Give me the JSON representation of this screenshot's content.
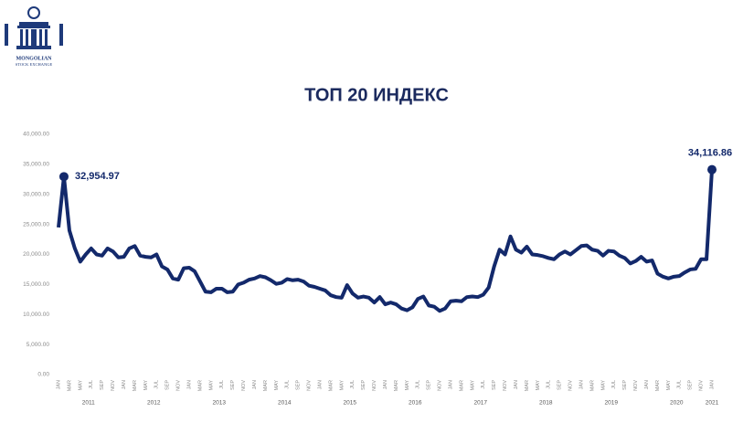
{
  "logo": {
    "line1": "MONGOLIAN",
    "line2": "STOCK EXCHANGE"
  },
  "chart_data": {
    "type": "line",
    "title": "ТОП 20 ИНДЕКС",
    "color": "#13296b",
    "grid": false,
    "categories": [
      "JAN",
      null,
      "MAR",
      null,
      "MAY",
      null,
      "JUL",
      null,
      "SEP",
      null,
      "NOV",
      null,
      "JAN",
      null,
      "MAR",
      null,
      "MAY",
      null,
      "JUL",
      null,
      "SEP",
      null,
      "NOV",
      null,
      "JAN",
      null,
      "MAR",
      null,
      "MAY",
      null,
      "JUL",
      null,
      "SEP",
      null,
      "NOV",
      null,
      "JAN",
      null,
      "MAR",
      null,
      "MAY",
      null,
      "JUL",
      null,
      "SEP",
      null,
      "NOV",
      null,
      "JAN",
      null,
      "MAR",
      null,
      "MAY",
      null,
      "JUL",
      null,
      "SEP",
      null,
      "NOV",
      null,
      "JAN",
      null,
      "MAR",
      null,
      "MAY",
      null,
      "JUL",
      null,
      "SEP",
      null,
      "NOV",
      null,
      "JAN",
      null,
      "MAR",
      null,
      "MAY",
      null,
      "JUL",
      null,
      "SEP",
      null,
      "NOV",
      null,
      "JAN",
      null,
      "MAR",
      null,
      "MAY",
      null,
      "JUL",
      null,
      "SEP",
      null,
      "NOV",
      null,
      "JAN",
      null,
      "MAR",
      null,
      "MAY",
      null,
      "JUL",
      null,
      "SEP",
      null,
      "NOV",
      null,
      "JAN",
      null,
      "MAR",
      null,
      "MAY",
      null,
      "JUL",
      null,
      "SEP",
      null,
      "NOV",
      null,
      "JAN"
    ],
    "years": [
      "2011",
      "2012",
      "2013",
      "2014",
      "2015",
      "2016",
      "2017",
      "2018",
      "2019",
      "2020",
      "2021"
    ],
    "values": [
      24500,
      32954.97,
      24000,
      21000,
      18800,
      20000,
      21000,
      20000,
      19800,
      21000,
      20500,
      19500,
      19600,
      21000,
      21400,
      19800,
      19600,
      19500,
      20000,
      18000,
      17500,
      16000,
      15800,
      17700,
      17800,
      17200,
      15500,
      13800,
      13700,
      14300,
      14300,
      13700,
      13800,
      15000,
      15300,
      15800,
      16000,
      16400,
      16200,
      15700,
      15100,
      15300,
      15900,
      15700,
      15800,
      15500,
      14800,
      14600,
      14300,
      14000,
      13200,
      12900,
      12800,
      14900,
      13500,
      12800,
      13000,
      12800,
      12000,
      12900,
      11700,
      12000,
      11700,
      11000,
      10700,
      11200,
      12600,
      13000,
      11500,
      11300,
      10600,
      11000,
      12200,
      12300,
      12200,
      12900,
      13000,
      12900,
      13300,
      14500,
      18000,
      20800,
      20000,
      23000,
      20800,
      20300,
      21300,
      20000,
      19900,
      19700,
      19400,
      19200,
      20000,
      20500,
      20000,
      20700,
      21400,
      21500,
      20800,
      20600,
      19800,
      20600,
      20500,
      19800,
      19400,
      18500,
      18900,
      19600,
      18800,
      19000,
      16800,
      16300,
      16000,
      16300,
      16400,
      17000,
      17500,
      17600,
      19200,
      19200,
      34116.86
    ],
    "value_labels": [
      null,
      "32,954.97",
      null,
      null,
      null,
      null,
      null,
      null,
      null,
      null,
      null,
      null,
      null,
      null,
      null,
      null,
      null,
      null,
      null,
      null,
      null,
      null,
      null,
      null,
      null,
      null,
      null,
      null,
      null,
      null,
      null,
      null,
      null,
      null,
      null,
      null,
      null,
      null,
      null,
      null,
      null,
      null,
      null,
      null,
      null,
      null,
      null,
      null,
      null,
      null,
      null,
      null,
      null,
      null,
      null,
      null,
      null,
      null,
      null,
      null,
      null,
      null,
      null,
      null,
      null,
      null,
      null,
      null,
      null,
      null,
      null,
      null,
      null,
      null,
      null,
      null,
      null,
      null,
      null,
      null,
      null,
      null,
      null,
      null,
      null,
      null,
      null,
      null,
      null,
      null,
      null,
      null,
      null,
      null,
      null,
      null,
      null,
      null,
      null,
      null,
      null,
      null,
      null,
      null,
      null,
      null,
      null,
      null,
      null,
      null,
      null,
      null,
      null,
      null,
      null,
      null,
      null,
      null,
      null,
      null,
      "34,116.86"
    ],
    "ylim": [
      0,
      40000
    ],
    "yticks": [
      {
        "value": 0,
        "label": "0.00"
      },
      {
        "value": 5000,
        "label": "5,000.00"
      },
      {
        "value": 10000,
        "label": "10,000.00"
      },
      {
        "value": 15000,
        "label": "15,000.00"
      },
      {
        "value": 20000,
        "label": "20,000.00"
      },
      {
        "value": 25000,
        "label": "25,000.00"
      },
      {
        "value": 30000,
        "label": "30,000.00"
      },
      {
        "value": 35000,
        "label": "35,000.00"
      },
      {
        "value": 40000,
        "label": "40,000.00"
      }
    ]
  }
}
